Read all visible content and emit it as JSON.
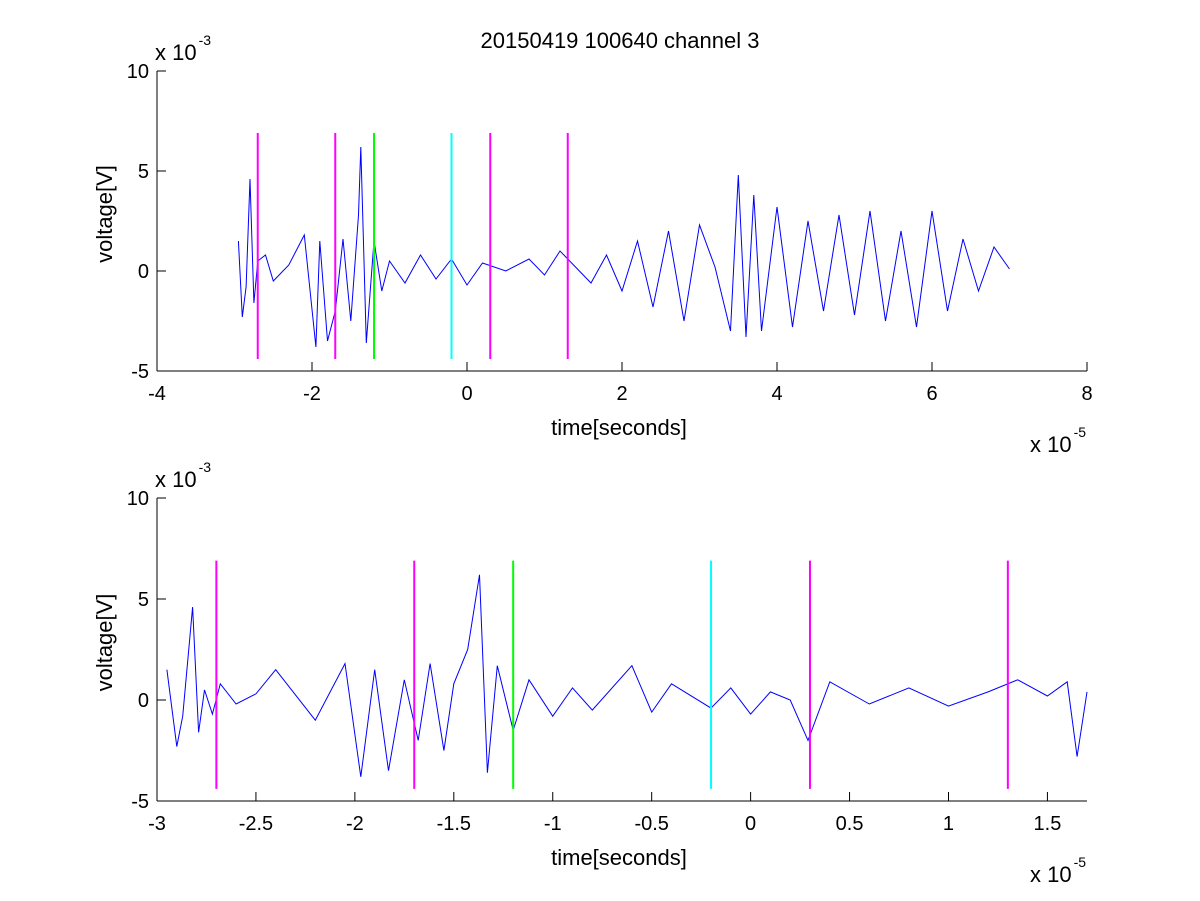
{
  "figure": {
    "title": "20150419 100640 channel 3",
    "colors": {
      "signal": "#0000ff",
      "marker_magenta": "#ff00ff",
      "marker_green": "#00ff00",
      "marker_cyan": "#00ffff",
      "axis": "#000000"
    }
  },
  "chart_data": [
    {
      "type": "line",
      "title": "20150419 100640 channel 3",
      "xlabel": "time[seconds]",
      "ylabel": "voltage[V]",
      "x_multiplier": "x 10",
      "x_multiplier_exp": "-5",
      "y_multiplier": "x 10",
      "y_multiplier_exp": "-3",
      "xlim": [
        -4,
        8
      ],
      "ylim": [
        -5,
        10
      ],
      "xticks": [
        -4,
        -2,
        0,
        2,
        4,
        6,
        8
      ],
      "xtick_labels": [
        "-4",
        "-2",
        "0",
        "2",
        "4",
        "6",
        "8"
      ],
      "yticks": [
        -5,
        0,
        5,
        10
      ],
      "ytick_labels": [
        "-5",
        "0",
        "5",
        "10"
      ],
      "grid": false,
      "series": [
        {
          "color": "#0000ff",
          "x": [
            -2.95,
            -2.9,
            -2.85,
            -2.8,
            -2.75,
            -2.7,
            -2.6,
            -2.5,
            -2.3,
            -2.1,
            -1.95,
            -1.9,
            -1.8,
            -1.7,
            -1.6,
            -1.5,
            -1.4,
            -1.37,
            -1.3,
            -1.2,
            -1.1,
            -1.0,
            -0.8,
            -0.6,
            -0.4,
            -0.2,
            0.0,
            0.2,
            0.5,
            0.8,
            1.0,
            1.2,
            1.4,
            1.6,
            1.8,
            2.0,
            2.2,
            2.4,
            2.6,
            2.8,
            3.0,
            3.2,
            3.4,
            3.5,
            3.6,
            3.7,
            3.8,
            4.0,
            4.2,
            4.4,
            4.6,
            4.8,
            5.0,
            5.2,
            5.4,
            5.6,
            5.8,
            6.0,
            6.2,
            6.4,
            6.6,
            6.8,
            7.0
          ],
          "y": [
            1.5,
            -2.3,
            -0.8,
            4.6,
            -1.6,
            0.5,
            0.8,
            -0.5,
            0.3,
            1.8,
            -3.8,
            1.5,
            -3.5,
            -2.0,
            1.6,
            -2.5,
            2.8,
            6.2,
            -3.6,
            1.5,
            -1.0,
            0.5,
            -0.6,
            0.8,
            -0.4,
            0.6,
            -0.7,
            0.4,
            0.0,
            0.6,
            -0.2,
            1.0,
            0.2,
            -0.6,
            0.8,
            -1.0,
            1.5,
            -1.8,
            2.0,
            -2.5,
            2.3,
            0.2,
            -3.0,
            4.8,
            -3.3,
            3.8,
            -3.0,
            3.2,
            -2.8,
            2.5,
            -2.0,
            2.8,
            -2.2,
            3.0,
            -2.5,
            2.0,
            -2.8,
            3.0,
            -2.0,
            1.6,
            -1.0,
            1.2,
            0.1
          ]
        }
      ],
      "markers": [
        {
          "x": -2.7,
          "color": "#ff00ff"
        },
        {
          "x": -1.7,
          "color": "#ff00ff"
        },
        {
          "x": -1.2,
          "color": "#00ff00"
        },
        {
          "x": -0.2,
          "color": "#00ffff"
        },
        {
          "x": 0.3,
          "color": "#ff00ff"
        },
        {
          "x": 1.3,
          "color": "#ff00ff"
        }
      ],
      "marker_ylim": [
        -4.4,
        6.9
      ]
    },
    {
      "type": "line",
      "title": "",
      "xlabel": "time[seconds]",
      "ylabel": "voltage[V]",
      "x_multiplier": "x 10",
      "x_multiplier_exp": "-5",
      "y_multiplier": "x 10",
      "y_multiplier_exp": "-3",
      "xlim": [
        -3.0,
        1.7
      ],
      "ylim": [
        -5,
        10
      ],
      "xticks": [
        -3,
        -2.5,
        -2,
        -1.5,
        -1,
        -0.5,
        0,
        0.5,
        1,
        1.5
      ],
      "xtick_labels": [
        "-3",
        "-2.5",
        "-2",
        "-1.5",
        "-1",
        "-0.5",
        "0",
        "0.5",
        "1",
        "1.5"
      ],
      "yticks": [
        -5,
        0,
        5,
        10
      ],
      "ytick_labels": [
        "-5",
        "0",
        "5",
        "10"
      ],
      "grid": false,
      "series": [
        {
          "color": "#0000ff",
          "x": [
            -2.95,
            -2.9,
            -2.87,
            -2.82,
            -2.79,
            -2.76,
            -2.72,
            -2.68,
            -2.6,
            -2.5,
            -2.4,
            -2.2,
            -2.05,
            -1.97,
            -1.9,
            -1.83,
            -1.75,
            -1.68,
            -1.62,
            -1.55,
            -1.5,
            -1.43,
            -1.37,
            -1.33,
            -1.28,
            -1.2,
            -1.12,
            -1.0,
            -0.9,
            -0.8,
            -0.6,
            -0.5,
            -0.4,
            -0.2,
            -0.1,
            0.0,
            0.1,
            0.2,
            0.29,
            0.4,
            0.6,
            0.8,
            1.0,
            1.2,
            1.35,
            1.5,
            1.6,
            1.65,
            1.7
          ],
          "y": [
            1.5,
            -2.3,
            -0.8,
            4.6,
            -1.6,
            0.5,
            -0.7,
            0.8,
            -0.2,
            0.3,
            1.5,
            -1.0,
            1.8,
            -3.8,
            1.5,
            -3.5,
            1.0,
            -2.0,
            1.8,
            -2.5,
            0.8,
            2.5,
            6.2,
            -3.6,
            1.7,
            -1.5,
            1.0,
            -0.8,
            0.6,
            -0.5,
            1.7,
            -0.6,
            0.8,
            -0.4,
            0.6,
            -0.7,
            0.4,
            0.0,
            -2.0,
            0.9,
            -0.2,
            0.6,
            -0.3,
            0.4,
            1.0,
            0.2,
            0.9,
            -2.8,
            0.4
          ]
        }
      ],
      "markers": [
        {
          "x": -2.7,
          "color": "#ff00ff"
        },
        {
          "x": -1.7,
          "color": "#ff00ff"
        },
        {
          "x": -1.2,
          "color": "#00ff00"
        },
        {
          "x": -0.2,
          "color": "#00ffff"
        },
        {
          "x": 0.3,
          "color": "#ff00ff"
        },
        {
          "x": 1.3,
          "color": "#ff00ff"
        }
      ],
      "marker_ylim": [
        -4.4,
        6.9
      ]
    }
  ]
}
